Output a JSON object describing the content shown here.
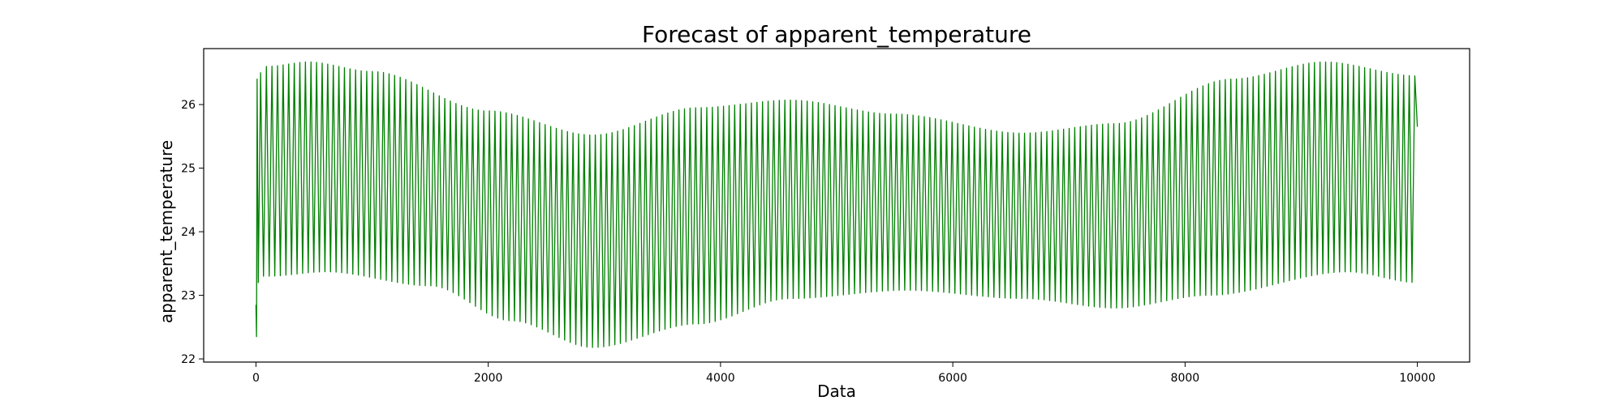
{
  "chart_data": {
    "type": "line",
    "title": "Forecast of apparent_temperature",
    "xlabel": "Data",
    "ylabel": "apparent_temperature",
    "xlim": [
      -450,
      10450
    ],
    "ylim": [
      21.95,
      26.88
    ],
    "x_ticks": [
      0,
      2000,
      4000,
      6000,
      8000,
      10000
    ],
    "y_ticks": [
      22,
      23,
      24,
      25,
      26
    ],
    "x_tick_labels": [
      "0",
      "2000",
      "4000",
      "6000",
      "8000",
      "10000"
    ],
    "y_tick_labels": [
      "22",
      "23",
      "24",
      "25",
      "26"
    ],
    "grid": false,
    "legend": "none",
    "series": [
      {
        "color": "#008000",
        "x_range": [
          0,
          10000
        ],
        "oscillation_period": 48,
        "initial_points": [
          {
            "x": 0,
            "y": 22.85
          },
          {
            "x": 5,
            "y": 22.35
          },
          {
            "x": 10,
            "y": 26.4
          },
          {
            "x": 20,
            "y": 23.2
          },
          {
            "x": 40,
            "y": 26.5
          },
          {
            "x": 65,
            "y": 23.3
          },
          {
            "x": 90,
            "y": 26.6
          }
        ],
        "upper_envelope": [
          {
            "x": 100,
            "y": 26.6
          },
          {
            "x": 450,
            "y": 26.67
          },
          {
            "x": 1000,
            "y": 26.52
          },
          {
            "x": 2000,
            "y": 25.9
          },
          {
            "x": 2900,
            "y": 25.52
          },
          {
            "x": 3800,
            "y": 25.95
          },
          {
            "x": 4600,
            "y": 26.07
          },
          {
            "x": 5500,
            "y": 25.85
          },
          {
            "x": 6600,
            "y": 25.55
          },
          {
            "x": 7400,
            "y": 25.7
          },
          {
            "x": 8400,
            "y": 26.4
          },
          {
            "x": 9200,
            "y": 26.67
          },
          {
            "x": 10000,
            "y": 26.45
          }
        ],
        "lower_envelope": [
          {
            "x": 100,
            "y": 23.3
          },
          {
            "x": 600,
            "y": 23.37
          },
          {
            "x": 1500,
            "y": 23.15
          },
          {
            "x": 2200,
            "y": 22.6
          },
          {
            "x": 2900,
            "y": 22.18
          },
          {
            "x": 3800,
            "y": 22.55
          },
          {
            "x": 4600,
            "y": 22.95
          },
          {
            "x": 5600,
            "y": 23.08
          },
          {
            "x": 6600,
            "y": 22.95
          },
          {
            "x": 7400,
            "y": 22.8
          },
          {
            "x": 8200,
            "y": 23.0
          },
          {
            "x": 9400,
            "y": 23.37
          },
          {
            "x": 10000,
            "y": 23.2
          }
        ],
        "final_point": {
          "x": 10000,
          "y": 25.65
        }
      }
    ]
  }
}
